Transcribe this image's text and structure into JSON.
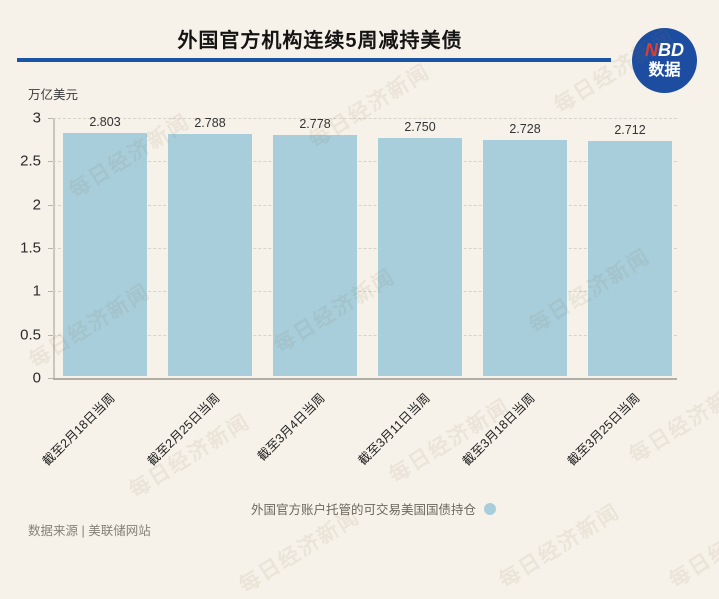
{
  "header": {
    "title": "外国官方机构连续5周减持美债"
  },
  "logo": {
    "n": "N",
    "bd": "BD",
    "sub": "数据"
  },
  "chart_data": {
    "type": "bar",
    "title": "外国官方机构连续5周减持美债",
    "ylabel": "万亿美元",
    "xlabel": "",
    "categories": [
      "截至2月18日当周",
      "截至2月25日当周",
      "截至3月4日当周",
      "截至3月11日当周",
      "截至3月18日当周",
      "截至3月25日当周"
    ],
    "values": [
      2.803,
      2.788,
      2.778,
      2.75,
      2.728,
      2.712
    ],
    "ylim": [
      0,
      3
    ],
    "yticks": [
      0,
      0.5,
      1,
      1.5,
      2,
      2.5,
      3
    ],
    "ytick_labels": [
      "0",
      "0.5",
      "1",
      "1.5",
      "2",
      "2.5",
      "3"
    ],
    "grid": true,
    "grid_style": "dashed",
    "legend": {
      "label": "外国官方账户托管的可交易美国国债持仓",
      "position": "bottom"
    },
    "bar_color": "#a8cedb"
  },
  "footer": {
    "source": "数据来源 | 美联储网站"
  },
  "watermark": {
    "text": "每日经济新闻"
  },
  "colors": {
    "background": "#f7f2e9",
    "bar": "#a8cedb",
    "title_rule": "#1a55a5",
    "logo_bg": "#1c4da0",
    "logo_red": "#e23b2e"
  }
}
